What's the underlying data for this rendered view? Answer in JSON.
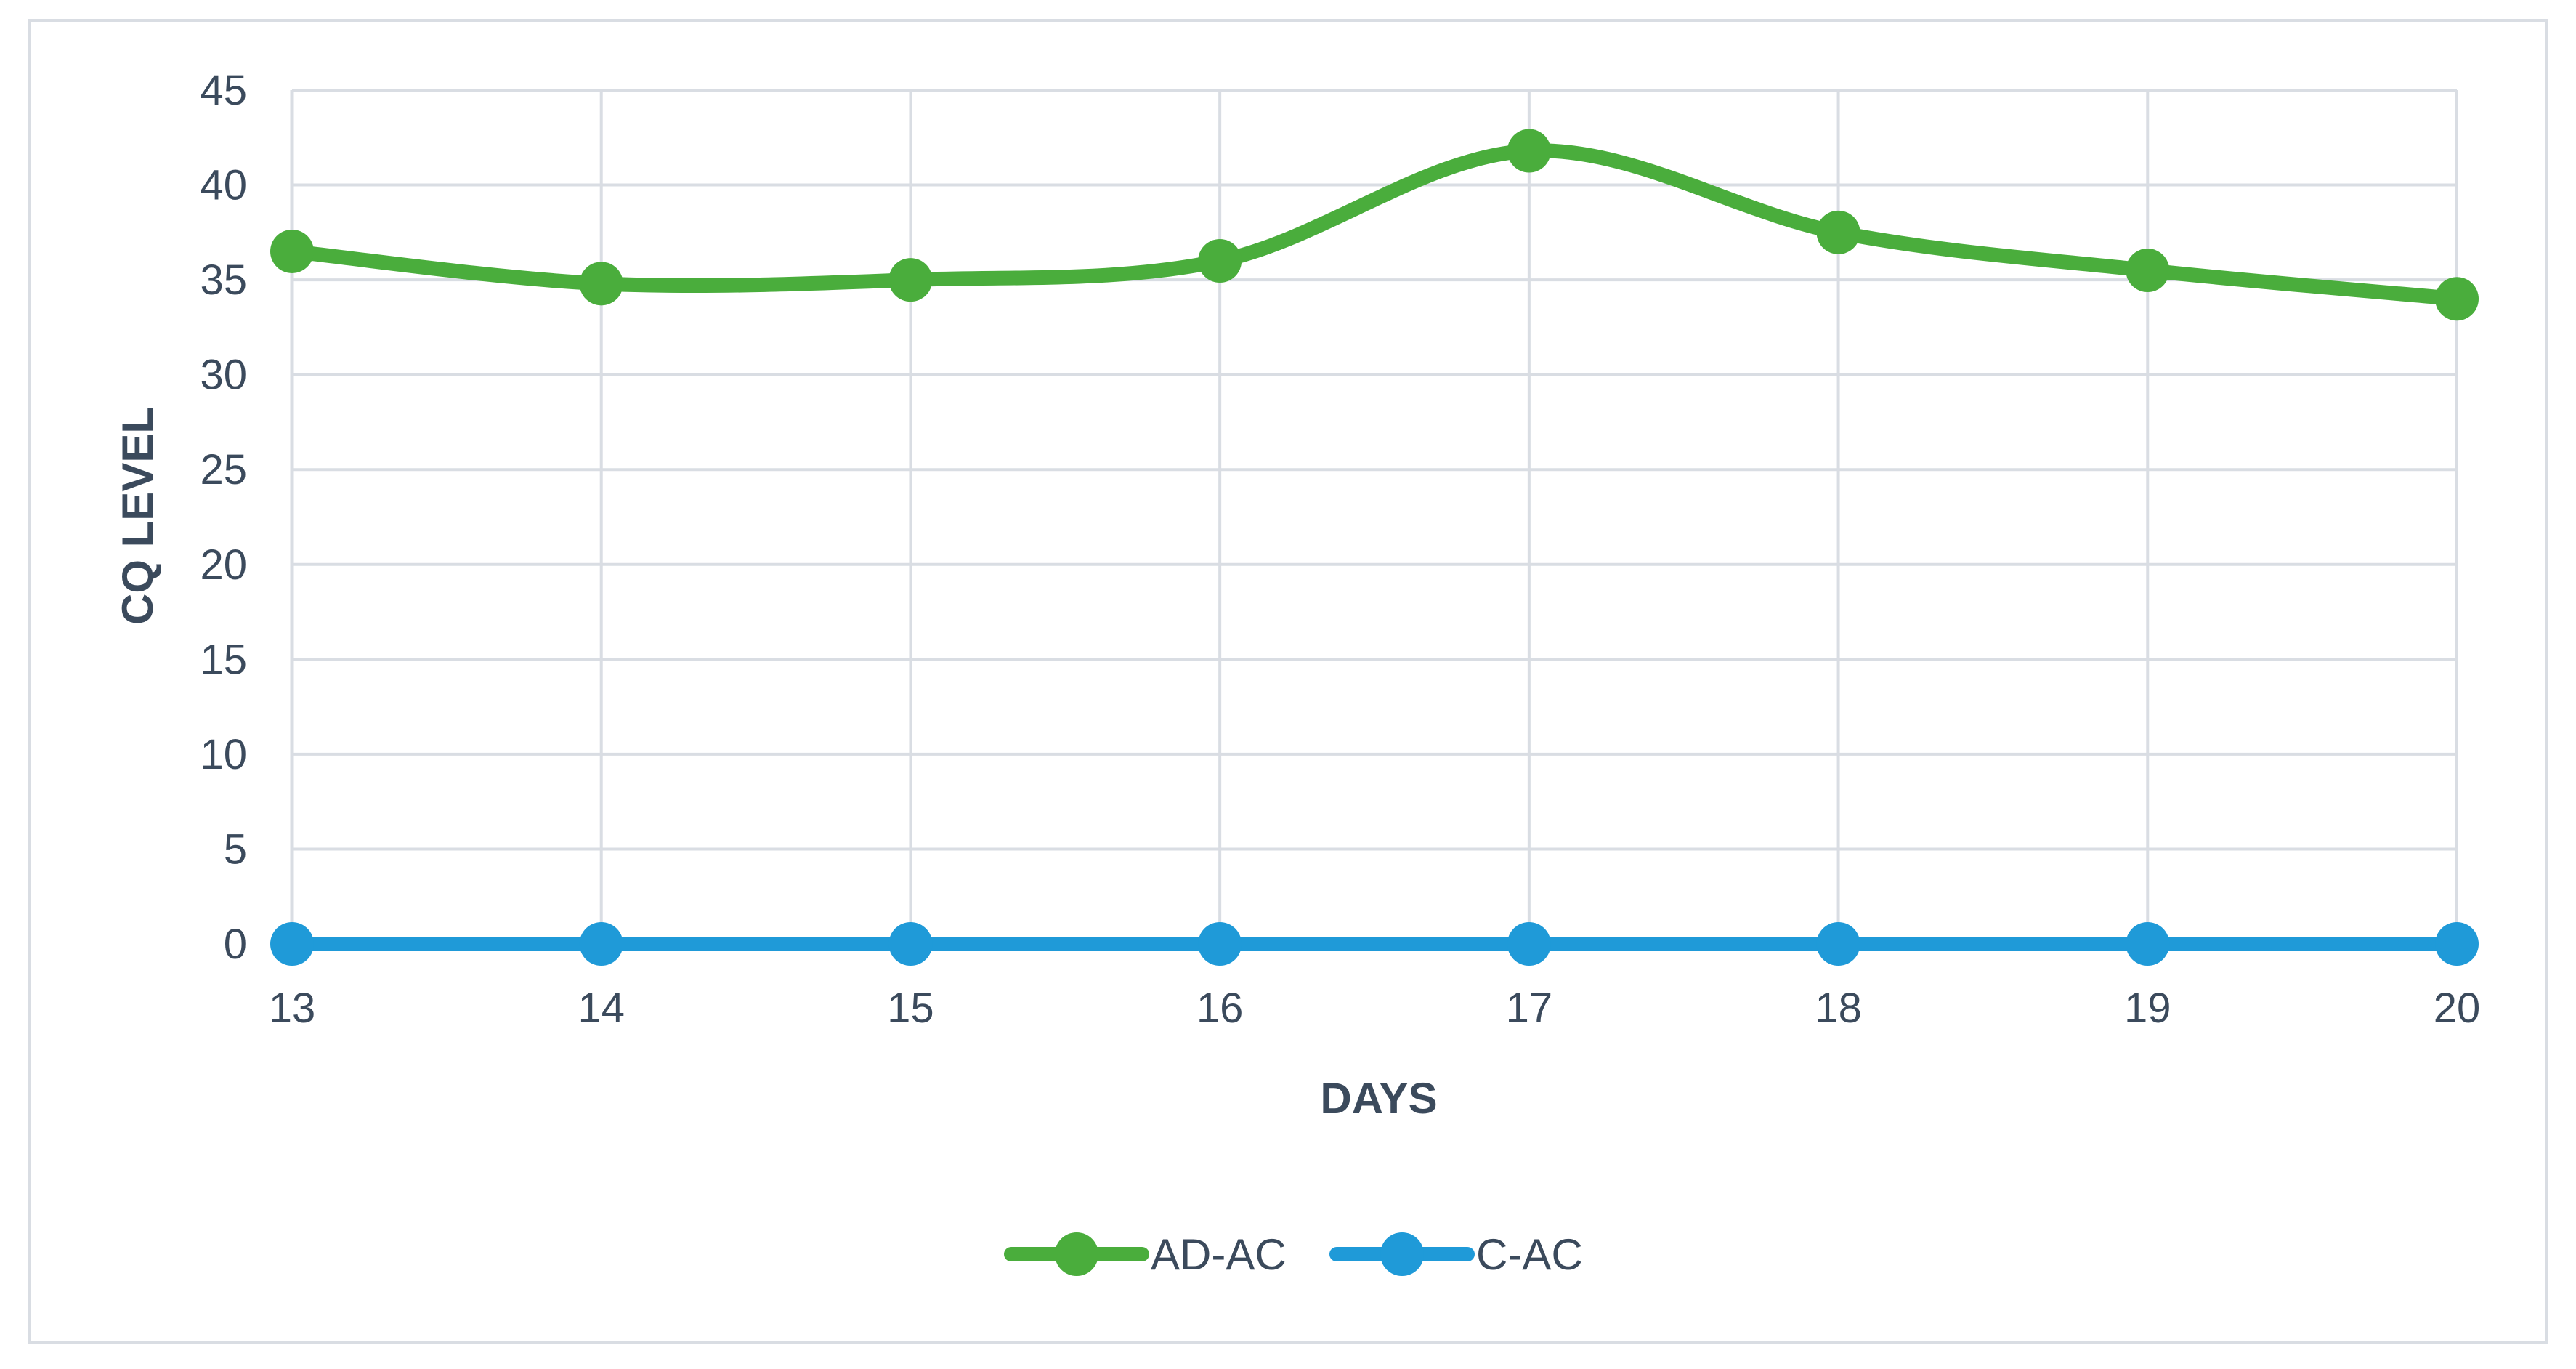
{
  "chart_data": {
    "type": "line",
    "title": "",
    "xlabel": "DAYS",
    "ylabel": "CQ LEVEL",
    "x": [
      13,
      14,
      15,
      16,
      17,
      18,
      19,
      20
    ],
    "ylim": [
      0,
      45
    ],
    "yticks": [
      0,
      5,
      10,
      15,
      20,
      25,
      30,
      35,
      40,
      45
    ],
    "grid": true,
    "smooth": true,
    "legend_position": "bottom",
    "series": [
      {
        "name": "AD-AC",
        "color": "#4aad3c",
        "values": [
          36.5,
          34.8,
          35.0,
          36.0,
          41.8,
          37.5,
          35.5,
          34.0
        ]
      },
      {
        "name": "C-AC",
        "color": "#1f9ad8",
        "values": [
          0,
          0,
          0,
          0,
          0,
          0,
          0,
          0
        ]
      }
    ]
  }
}
